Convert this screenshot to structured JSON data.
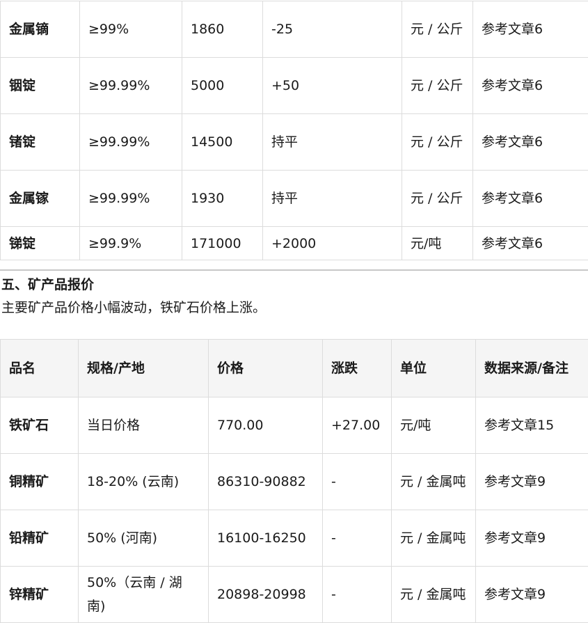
{
  "table1": {
    "rows": [
      [
        "金属镝",
        "≥99%",
        "1860",
        "-25",
        "元 / 公斤",
        "参考文章6"
      ],
      [
        "铟锭",
        "≥99.99%",
        "5000",
        "+50",
        "元 / 公斤",
        "参考文章6"
      ],
      [
        "锗锭",
        "≥99.99%",
        "14500",
        "持平",
        "元 / 公斤",
        "参考文章6"
      ],
      [
        "金属镓",
        "≥99.99%",
        "1930",
        "持平",
        "元 / 公斤",
        "参考文章6"
      ],
      [
        "锑锭",
        "≥99.9%",
        "171000",
        "+2000",
        "元/吨",
        "参考文章6"
      ]
    ]
  },
  "section": {
    "heading": "五、矿产品报价",
    "summary": "主要矿产品价格小幅波动，铁矿石价格上涨。"
  },
  "table2": {
    "headers": [
      "品名",
      "规格/产地",
      "价格",
      "涨跌",
      "单位",
      "数据来源/备注"
    ],
    "rows": [
      [
        "铁矿石",
        "当日价格",
        "770.00",
        "+27.00",
        "元/吨",
        "参考文章15"
      ],
      [
        "铜精矿",
        "18-20% (云南)",
        "86310-90882",
        "-",
        "元 / 金属吨",
        "参考文章9"
      ],
      [
        "铅精矿",
        "50% (河南)",
        "16100-16250",
        "-",
        "元 / 金属吨",
        "参考文章9"
      ],
      [
        "锌精矿",
        "50%（云南 / 湖南)",
        "20898-20998",
        "-",
        "元 / 金属吨",
        "参考文章9"
      ]
    ]
  }
}
